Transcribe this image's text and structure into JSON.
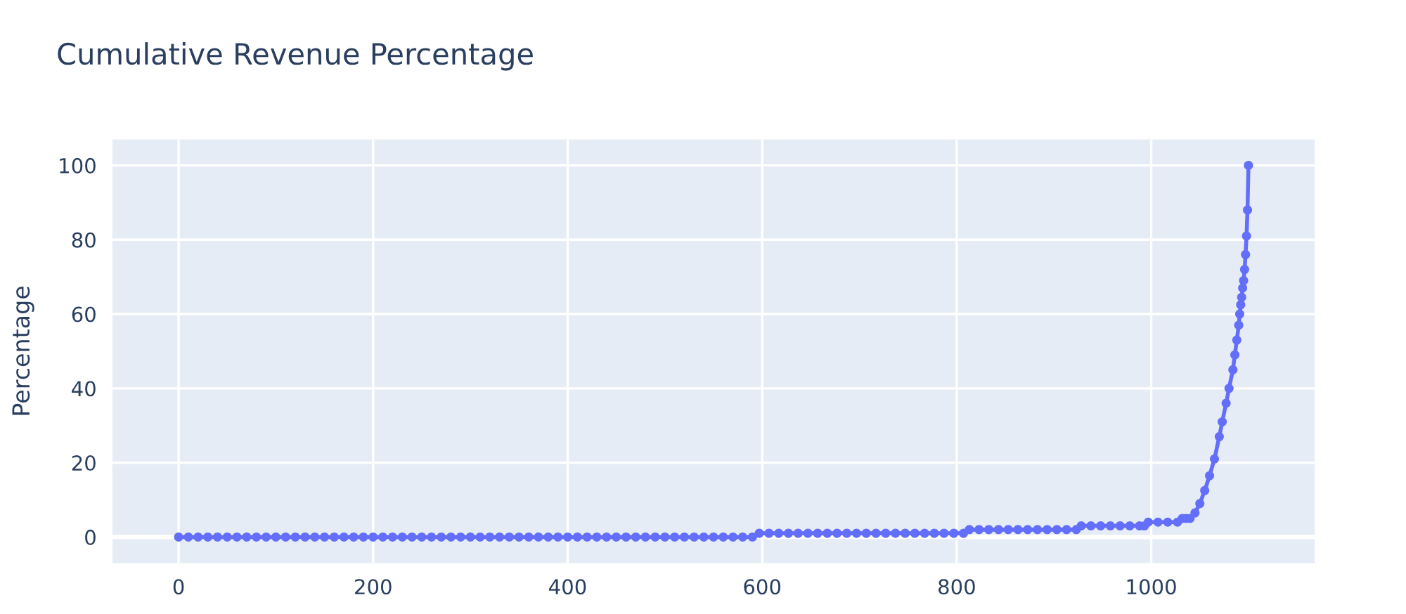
{
  "chart_data": {
    "type": "line",
    "title": "Cumulative Revenue Percentage",
    "ylabel": "Percentage",
    "xlim": [
      -68,
      1168
    ],
    "ylim": [
      -7,
      107
    ],
    "xticks": [
      0,
      200,
      400,
      600,
      800,
      1000
    ],
    "yticks": [
      0,
      20,
      40,
      60,
      80,
      100
    ],
    "grid": true,
    "marker": "circle",
    "line_style": "solid",
    "series": [
      {
        "color": "#636efa",
        "x": [
          0,
          10,
          20,
          30,
          40,
          50,
          60,
          70,
          80,
          90,
          100,
          110,
          120,
          130,
          140,
          150,
          160,
          170,
          180,
          190,
          200,
          210,
          220,
          230,
          240,
          250,
          260,
          270,
          280,
          290,
          300,
          310,
          320,
          330,
          340,
          350,
          360,
          370,
          380,
          390,
          400,
          410,
          420,
          430,
          440,
          450,
          460,
          470,
          480,
          490,
          500,
          510,
          520,
          530,
          540,
          550,
          560,
          570,
          580,
          590,
          597,
          607,
          617,
          627,
          637,
          647,
          657,
          667,
          677,
          687,
          697,
          707,
          717,
          727,
          737,
          747,
          757,
          767,
          777,
          787,
          797,
          807,
          813,
          823,
          833,
          843,
          853,
          863,
          873,
          883,
          893,
          903,
          913,
          923,
          928,
          938,
          948,
          958,
          968,
          978,
          988,
          993,
          997,
          1007,
          1017,
          1027,
          1032,
          1036,
          1040,
          1045,
          1050,
          1055,
          1060,
          1065,
          1070,
          1073,
          1077,
          1080,
          1084,
          1086,
          1088,
          1090,
          1091,
          1092,
          1093,
          1094,
          1095,
          1096,
          1097,
          1098,
          1099,
          1100
        ],
        "values": [
          0,
          0,
          0,
          0,
          0,
          0,
          0,
          0,
          0,
          0,
          0,
          0,
          0,
          0,
          0,
          0,
          0,
          0,
          0,
          0,
          0,
          0,
          0,
          0,
          0,
          0,
          0,
          0,
          0,
          0,
          0,
          0,
          0,
          0,
          0,
          0,
          0,
          0,
          0,
          0,
          0,
          0,
          0,
          0,
          0,
          0,
          0,
          0,
          0,
          0,
          0,
          0,
          0,
          0,
          0,
          0,
          0,
          0,
          0,
          0,
          1,
          1,
          1,
          1,
          1,
          1,
          1,
          1,
          1,
          1,
          1,
          1,
          1,
          1,
          1,
          1,
          1,
          1,
          1,
          1,
          1,
          1,
          2,
          2,
          2,
          2,
          2,
          2,
          2,
          2,
          2,
          2,
          2,
          2,
          3,
          3,
          3,
          3,
          3,
          3,
          3,
          3,
          4,
          4,
          4,
          4,
          5,
          5,
          5,
          6.5,
          9,
          12.5,
          16.5,
          21,
          27,
          31,
          36,
          40,
          45,
          49,
          53,
          57,
          60,
          62.5,
          64.5,
          67,
          69,
          72,
          76,
          81,
          88,
          100
        ]
      }
    ]
  }
}
